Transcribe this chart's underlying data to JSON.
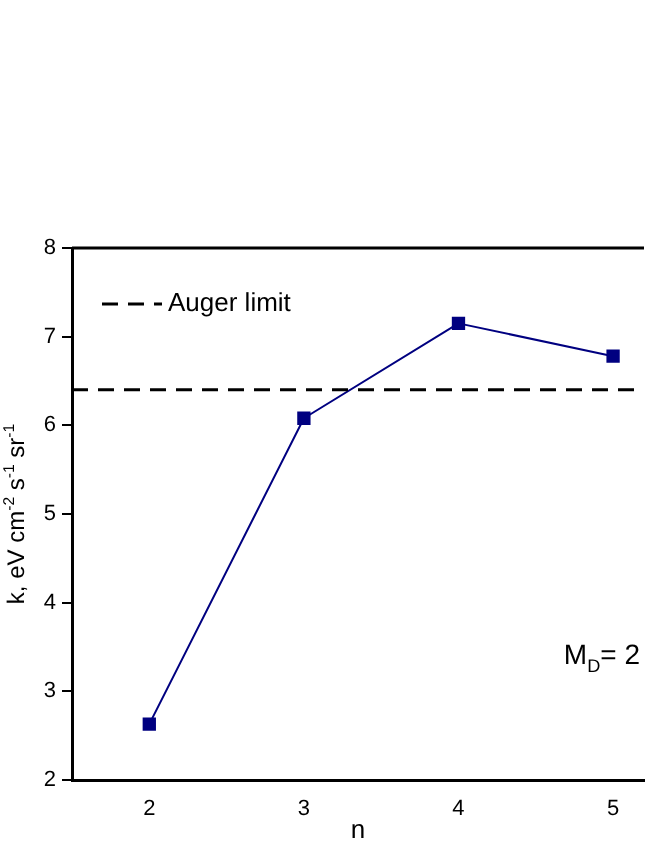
{
  "chart_data": {
    "type": "line",
    "xlabel": "n",
    "ylabel": "k, eV cm$^{-2}$ s$^{-1}$ sr$^{-1}$",
    "x": [
      2,
      3,
      4,
      5
    ],
    "series": [
      {
        "color": "#000080",
        "values": [
          2.63,
          6.08,
          7.15,
          6.78
        ]
      }
    ],
    "xlim": [
      1.5,
      5.2
    ],
    "xticks": [
      2,
      3,
      4,
      5
    ],
    "ylim": [
      2,
      8
    ],
    "yticks": [
      2,
      3,
      4,
      5,
      6,
      7,
      8
    ],
    "ref_lines": [
      {
        "axis": "y",
        "value": 6.4,
        "label": "Auger limit",
        "color": "#000000",
        "line_style": "dashed"
      }
    ],
    "annotations": [
      "M$_{D}$= 2"
    ],
    "legend": "top left",
    "marker": "square",
    "grid": false
  }
}
